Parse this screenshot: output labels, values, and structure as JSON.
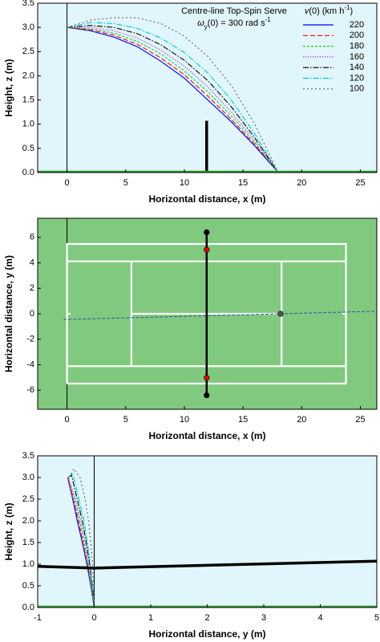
{
  "chart_data": [
    {
      "type": "line",
      "xlabel": "Horizontal distance, x (m)",
      "ylabel": "Height, z (m)",
      "annotation": "Centre-line Top-Spin Serve",
      "annotation2": [
        "ω",
        "y",
        "(0) = 300 rad s",
        "-1"
      ],
      "legend_title": [
        "v",
        "(0) (km h",
        "-1",
        ")"
      ],
      "background": "#e1f5fc",
      "ground_color": "#2a9d2a",
      "vline": 0,
      "xlim": [
        -2.5,
        26.4
      ],
      "xticks": [
        0,
        5,
        10,
        15,
        20,
        25
      ],
      "ylim": [
        0,
        3.5
      ],
      "yticks": [
        {
          "value": 0,
          "label": "0.0"
        },
        0.5,
        {
          "value": 1,
          "label": "1.0"
        },
        1.5,
        {
          "value": 2,
          "label": "2.0"
        },
        2.5,
        {
          "value": 3,
          "label": "3.0"
        },
        3.5
      ],
      "x": [
        0,
        2,
        4,
        6,
        8,
        10,
        12,
        14,
        16,
        18
      ],
      "series": [
        {
          "name": "220",
          "color": "#0000ff",
          "dash": "solid",
          "values": [
            3.0,
            2.93,
            2.8,
            2.6,
            2.3,
            1.95,
            1.5,
            1.05,
            0.55,
            0.0
          ]
        },
        {
          "name": "200",
          "color": "#ff0000",
          "dash": "dashed",
          "values": [
            3.0,
            2.95,
            2.84,
            2.65,
            2.37,
            2.02,
            1.58,
            1.1,
            0.58,
            0.0
          ]
        },
        {
          "name": "180",
          "color": "#22cc22",
          "dash": "shortdash",
          "values": [
            3.0,
            2.97,
            2.88,
            2.71,
            2.45,
            2.1,
            1.67,
            1.17,
            0.62,
            0.0
          ]
        },
        {
          "name": "160",
          "color": "#9933cc",
          "dash": "dotted",
          "values": [
            3.0,
            3.0,
            2.93,
            2.78,
            2.53,
            2.2,
            1.77,
            1.25,
            0.66,
            0.0
          ]
        },
        {
          "name": "140",
          "color": "#000000",
          "dash": "dashdot",
          "values": [
            3.0,
            3.04,
            3.0,
            2.87,
            2.64,
            2.32,
            1.9,
            1.36,
            0.72,
            0.0
          ]
        },
        {
          "name": "120",
          "color": "#00cccc",
          "dash": "dashdot",
          "values": [
            3.0,
            3.1,
            3.08,
            2.98,
            2.78,
            2.48,
            2.06,
            1.5,
            0.8,
            0.0
          ]
        },
        {
          "name": "100",
          "color": "#666666",
          "dash": "sparse",
          "values": [
            3.0,
            3.15,
            3.2,
            3.2,
            3.08,
            2.82,
            2.4,
            1.8,
            1.0,
            0.0
          ]
        }
      ],
      "nets": [
        {
          "x": [
            11.9,
            11.9
          ],
          "y": [
            0,
            1.07
          ],
          "color": "#000000"
        }
      ]
    },
    {
      "type": "court",
      "xlabel": "Horizontal distance, x (m)",
      "ylabel": "Horizontal distance, y (m)",
      "background": "#80c97e",
      "vline": 0,
      "xlim": [
        -2.5,
        26.4
      ],
      "xticks": [
        0,
        5,
        10,
        15,
        20,
        25
      ],
      "ylim": [
        -7.5,
        7.5
      ],
      "yticks": [
        -6,
        -4,
        -2,
        0,
        2,
        4,
        6
      ],
      "court_lines": [
        {
          "x": [
            0,
            23.77,
            23.77,
            0,
            0
          ],
          "y": [
            -5.485,
            -5.485,
            5.485,
            5.485,
            -5.485
          ]
        },
        {
          "x": [
            0,
            23.77
          ],
          "y": [
            4.115,
            4.115
          ]
        },
        {
          "x": [
            0,
            23.77
          ],
          "y": [
            -4.115,
            -4.115
          ]
        },
        {
          "x": [
            5.485,
            5.485
          ],
          "y": [
            -4.115,
            4.115
          ]
        },
        {
          "x": [
            18.285,
            18.285
          ],
          "y": [
            -4.115,
            4.115
          ]
        },
        {
          "x": [
            5.485,
            18.285
          ],
          "y": [
            0,
            0
          ]
        },
        {
          "x": [
            0,
            0.3
          ],
          "y": [
            0,
            0
          ]
        },
        {
          "x": [
            23.47,
            23.77
          ],
          "y": [
            0,
            0
          ]
        }
      ],
      "path": {
        "x": [
          -0.3,
          26.4
        ],
        "y": [
          -0.45,
          0.2
        ],
        "color": "#3355aa"
      },
      "nets": [
        {
          "x": [
            11.9,
            11.9
          ],
          "y": [
            -6.4,
            6.4
          ],
          "color": "#000000"
        }
      ],
      "points": [
        {
          "x": [
            11.9,
            11.9
          ],
          "y": [
            6.4,
            -6.4
          ],
          "color": "#000000"
        },
        {
          "x": [
            11.9,
            11.9
          ],
          "y": [
            5.03,
            -5.03
          ],
          "color": "#e00000"
        },
        {
          "x": [
            18.2
          ],
          "y": [
            0
          ],
          "color": "#555555"
        }
      ]
    },
    {
      "type": "line",
      "xlabel": "Horizontal distance, y (m)",
      "ylabel": "Height, z (m)",
      "background": "#e1f5fc",
      "ground_color": "#2a9d2a",
      "vline": 0,
      "xlim": [
        -1,
        5
      ],
      "xticks": [
        -1,
        0,
        1,
        2,
        3,
        4,
        5
      ],
      "ylim": [
        0,
        3.5
      ],
      "yticks": [
        {
          "value": 0,
          "label": "0.0"
        },
        0.5,
        {
          "value": 1,
          "label": "1.0"
        },
        1.5,
        {
          "value": 2,
          "label": "2.0"
        },
        2.5,
        {
          "value": 3,
          "label": "3.0"
        },
        3.5
      ],
      "series": [
        {
          "color": "#0000ff",
          "dash": "solid",
          "x": [
            -0.47,
            -0.38,
            -0.3,
            -0.21,
            -0.13,
            -0.06,
            0
          ],
          "values": [
            3.0,
            2.5,
            2.0,
            1.5,
            1.0,
            0.5,
            0.0
          ]
        },
        {
          "color": "#ff0000",
          "dash": "dashed",
          "x": [
            -0.47,
            -0.37,
            -0.28,
            -0.2,
            -0.12,
            -0.05,
            0
          ],
          "values": [
            3.0,
            2.5,
            2.0,
            1.5,
            1.0,
            0.5,
            0.0
          ]
        },
        {
          "color": "#22cc22",
          "dash": "shortdash",
          "x": [
            -0.46,
            -0.35,
            -0.26,
            -0.18,
            -0.11,
            -0.05,
            0
          ],
          "values": [
            3.0,
            2.5,
            2.0,
            1.5,
            1.0,
            0.5,
            0.0
          ]
        },
        {
          "color": "#9933cc",
          "dash": "dotted",
          "x": [
            -0.46,
            -0.33,
            -0.24,
            -0.16,
            -0.1,
            -0.04,
            0
          ],
          "values": [
            3.0,
            2.5,
            2.0,
            1.5,
            1.0,
            0.5,
            0.0
          ]
        },
        {
          "color": "#000000",
          "dash": "dashdot",
          "x": [
            -0.46,
            -0.4,
            -0.3,
            -0.21,
            -0.14,
            -0.08,
            -0.03,
            0
          ],
          "values": [
            3.0,
            3.05,
            2.5,
            2.0,
            1.5,
            1.0,
            0.5,
            0.0
          ]
        },
        {
          "color": "#00cccc",
          "dash": "dashdot",
          "x": [
            -0.46,
            -0.38,
            -0.27,
            -0.18,
            -0.12,
            -0.07,
            -0.03,
            0
          ],
          "values": [
            3.0,
            3.1,
            2.5,
            2.0,
            1.5,
            1.0,
            0.5,
            0.0
          ]
        },
        {
          "color": "#666666",
          "dash": "sparse",
          "x": [
            -0.45,
            -0.36,
            -0.25,
            -0.16,
            -0.1,
            -0.06,
            -0.03,
            -0.01,
            0
          ],
          "values": [
            3.0,
            3.2,
            3.0,
            2.5,
            2.0,
            1.5,
            1.0,
            0.5,
            0.0
          ]
        }
      ],
      "nets": [
        {
          "x": [
            -1,
            0,
            5
          ],
          "y": [
            0.95,
            0.91,
            1.07
          ],
          "color": "#000000"
        }
      ]
    }
  ]
}
